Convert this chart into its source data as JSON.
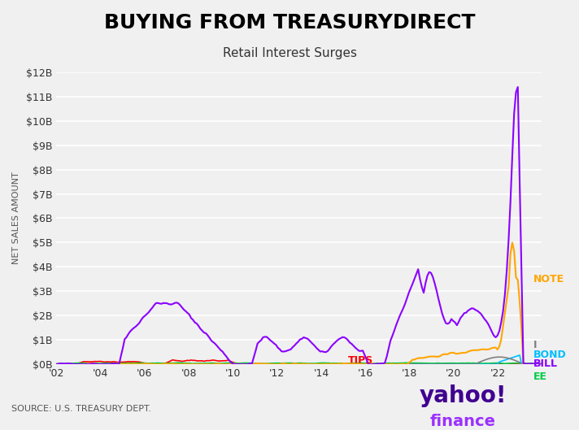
{
  "title": "BUYING FROM TREASURYDIRECT",
  "subtitle": "Retail Interest Surges",
  "ylabel": "NET SALES AMOUNT",
  "source": "SOURCE: U.S. TREASURY DEPT.",
  "background_color": "#f0f0f0",
  "plot_bg_color": "#f0f0f0",
  "ylim": [
    0,
    12000000000.0
  ],
  "yticks": [
    0,
    1000000000.0,
    2000000000.0,
    3000000000.0,
    4000000000.0,
    5000000000.0,
    6000000000.0,
    7000000000.0,
    8000000000.0,
    9000000000.0,
    10000000000.0,
    11000000000.0,
    12000000000.0
  ],
  "ytick_labels": [
    "$0B",
    "$1B",
    "$2B",
    "$3B",
    "$4B",
    "$5B",
    "$6B",
    "$7B",
    "$8B",
    "$9B",
    "$10B",
    "$11B",
    "$12B"
  ],
  "xtick_labels": [
    "'02",
    "'04",
    "'06",
    "'08",
    "'10",
    "'12",
    "'14",
    "'16",
    "'18",
    "'20",
    "'22"
  ],
  "series_colors": {
    "BILL": "#8B00FF",
    "NOTE": "#FFA500",
    "I": "#808080",
    "BOND": "#00BFFF",
    "TIPS": "#FF0000",
    "EE": "#00CC44"
  },
  "legend_labels": [
    "BILL",
    "NOTE",
    "I",
    "BOND",
    "EE"
  ],
  "yahoo_purple": "#7B0EA0",
  "yahoo_violet": "#9B30FF"
}
